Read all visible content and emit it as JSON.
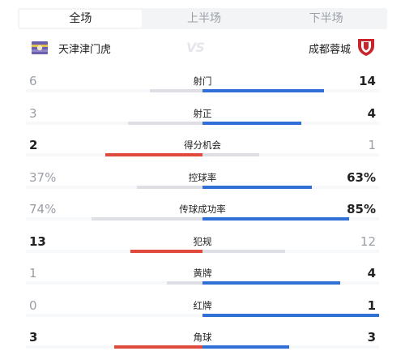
{
  "tabs": [
    "全场",
    "上半场",
    "下半场"
  ],
  "active_tab": 0,
  "home_team": "天津津门虎",
  "away_team": "成都蓉城",
  "vs_text": "VS",
  "colors": {
    "home_win": "#e04a3c",
    "away_win": "#2f6fd6",
    "loser": "#dddfe4"
  },
  "stats": [
    {
      "label": "射门",
      "home": "6",
      "away": "14",
      "home_frac": 0.3,
      "away_frac": 0.69
    },
    {
      "label": "射正",
      "home": "3",
      "away": "4",
      "home_frac": 0.42,
      "away_frac": 0.56
    },
    {
      "label": "得分机会",
      "home": "2",
      "away": "1",
      "home_frac": 0.55,
      "away_frac": 0.32
    },
    {
      "label": "控球率",
      "home": "37%",
      "away": "63%",
      "home_frac": 0.37,
      "away_frac": 0.62
    },
    {
      "label": "传球成功率",
      "home": "74%",
      "away": "85%",
      "home_frac": 0.63,
      "away_frac": 0.83
    },
    {
      "label": "犯规",
      "home": "13",
      "away": "12",
      "home_frac": 0.41,
      "away_frac": 0.47
    },
    {
      "label": "黄牌",
      "home": "1",
      "away": "4",
      "home_frac": 0.2,
      "away_frac": 0.78
    },
    {
      "label": "红牌",
      "home": "0",
      "away": "1",
      "home_frac": 0.0,
      "away_frac": 1.0
    },
    {
      "label": "角球",
      "home": "3",
      "away": "3",
      "home_frac": 0.5,
      "away_frac": 0.49
    }
  ]
}
